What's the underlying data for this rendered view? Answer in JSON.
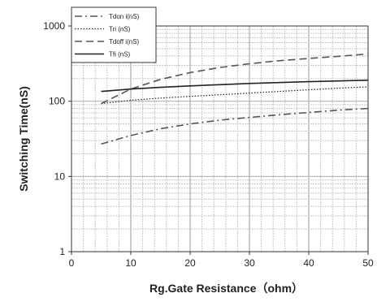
{
  "chart_data": {
    "type": "line",
    "title": "",
    "xlabel": "Rg.Gate Resistance（ohm）",
    "ylabel": "Switching Time(nS)",
    "xlim": [
      0,
      50
    ],
    "ylim": [
      1,
      1000
    ],
    "yscale": "log",
    "grid": true,
    "legend_position": "top-left",
    "x_ticks": [
      0,
      10,
      20,
      30,
      40,
      50
    ],
    "y_ticks": [
      1,
      10,
      100,
      1000
    ],
    "x_tick_labels": [
      "0",
      "10",
      "20",
      "30",
      "40",
      "50"
    ],
    "y_tick_labels": [
      "1",
      "10",
      "100",
      "1000"
    ],
    "x": [
      5,
      10,
      15,
      20,
      25,
      30,
      35,
      40,
      45,
      50
    ],
    "series": [
      {
        "name": "Tdon i(nS)",
        "dash": "dashdot",
        "color": "#555555",
        "values": [
          27,
          35,
          43,
          50,
          56,
          61,
          66,
          71,
          76,
          80
        ]
      },
      {
        "name": "Tri (nS)",
        "dash": "dotted",
        "color": "#222222",
        "values": [
          93,
          103,
          110,
          116,
          122,
          128,
          135,
          142,
          149,
          155
        ]
      },
      {
        "name": "Tdoff i(nS)",
        "dash": "dashed",
        "color": "#555555",
        "values": [
          93,
          145,
          195,
          240,
          280,
          315,
          345,
          370,
          395,
          425
        ]
      },
      {
        "name": "Tfi (nS)",
        "dash": "solid",
        "color": "#222222",
        "values": [
          135,
          145,
          153,
          160,
          166,
          172,
          177,
          182,
          186,
          190
        ]
      }
    ]
  }
}
